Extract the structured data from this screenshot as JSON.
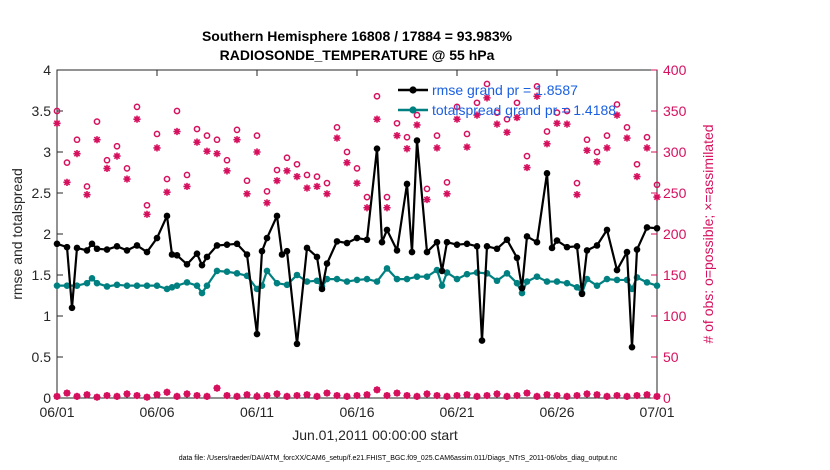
{
  "chart_data": {
    "type": "line",
    "title": "Southern Hemisphere 16808 / 17884 = 93.983%",
    "subtitle": "RADIOSONDE_TEMPERATURE @ 55 hPa",
    "xlabel": "Jun.01,2011 00:00:00 start",
    "ylabel": "rmse and totalspread",
    "ylabel_right": "# of obs: o=possible; ×=assimilated",
    "footnote": "data file: /Users/raeder/DAI/ATM_forcXX/CAM6_setup/f.e21.FHIST_BGC.f09_025.CAM6assim.011/Diags_NTrS_2011-06/obs_diag_output.nc",
    "xlim": [
      0,
      30
    ],
    "ylim": [
      0,
      4
    ],
    "ylim_right": [
      0,
      400
    ],
    "xticks": [
      0,
      5,
      10,
      15,
      20,
      25,
      30
    ],
    "xtick_labels": [
      "06/01",
      "06/06",
      "06/11",
      "06/16",
      "06/21",
      "06/26",
      "07/01"
    ],
    "yticks": [
      "0",
      "0.5",
      "1",
      "1.5",
      "2",
      "2.5",
      "3",
      "3.5",
      "4"
    ],
    "yticks_right": [
      "0",
      "50",
      "100",
      "150",
      "200",
      "250",
      "300",
      "350",
      "400"
    ],
    "legend": {
      "placement": "top-right",
      "entries": [
        "rmse grand pr = 1.8587",
        "totalspread grand pr = 1.4188"
      ]
    },
    "series": [
      {
        "name": "rmse grand pr = 1.8587",
        "color": "#000000",
        "marker": "circle",
        "axis": "left",
        "x": [
          0.0,
          0.5,
          0.75,
          1.0,
          1.5,
          1.75,
          2.0,
          2.5,
          3.0,
          3.5,
          4.0,
          4.5,
          5.0,
          5.5,
          5.75,
          6.0,
          6.5,
          7.0,
          7.25,
          7.5,
          8.0,
          8.5,
          9.0,
          9.5,
          10.0,
          10.25,
          10.5,
          11.0,
          11.25,
          11.5,
          12.0,
          12.5,
          13.0,
          13.25,
          13.5,
          14.0,
          14.5,
          15.0,
          15.5,
          16.0,
          16.25,
          16.5,
          17.0,
          17.5,
          17.75,
          18.0,
          18.5,
          19.0,
          19.25,
          19.5,
          20.0,
          20.5,
          21.0,
          21.25,
          21.5,
          22.0,
          22.5,
          23.0,
          23.25,
          23.5,
          24.0,
          24.5,
          24.75,
          25.0,
          25.5,
          26.0,
          26.25,
          26.5,
          27.0,
          27.5,
          28.0,
          28.5,
          28.75,
          29.0,
          29.5,
          30.0
        ],
        "values": [
          1.88,
          1.84,
          1.1,
          1.83,
          1.8,
          1.88,
          1.82,
          1.81,
          1.85,
          1.8,
          1.86,
          1.78,
          1.95,
          2.22,
          1.75,
          1.74,
          1.63,
          1.76,
          1.62,
          1.72,
          1.86,
          1.87,
          1.88,
          1.75,
          0.78,
          1.79,
          1.95,
          2.22,
          1.75,
          1.79,
          0.66,
          1.83,
          1.72,
          1.33,
          1.64,
          1.91,
          1.89,
          1.95,
          1.93,
          3.04,
          1.9,
          2.05,
          1.8,
          2.61,
          1.78,
          3.14,
          1.78,
          1.9,
          1.55,
          1.9,
          1.87,
          1.88,
          1.85,
          0.7,
          1.85,
          1.82,
          1.93,
          1.71,
          1.34,
          1.97,
          1.9,
          2.74,
          1.83,
          1.92,
          1.84,
          1.85,
          1.27,
          1.8,
          1.86,
          2.05,
          1.56,
          1.78,
          0.62,
          1.81,
          2.08,
          2.07
        ]
      },
      {
        "name": "totalspread grand pr = 1.4188",
        "color": "#008080",
        "marker": "circle",
        "axis": "left",
        "x": [
          0.0,
          0.5,
          1.0,
          1.5,
          1.75,
          2.0,
          2.5,
          3.0,
          3.5,
          4.0,
          4.5,
          5.0,
          5.5,
          5.75,
          6.0,
          6.5,
          7.0,
          7.25,
          7.5,
          8.0,
          8.5,
          9.0,
          9.5,
          10.0,
          10.25,
          10.5,
          11.0,
          11.5,
          12.0,
          12.5,
          13.0,
          13.25,
          13.5,
          14.0,
          14.5,
          15.0,
          15.5,
          16.0,
          16.5,
          17.0,
          17.5,
          18.0,
          18.5,
          19.0,
          19.25,
          19.5,
          20.0,
          20.5,
          21.0,
          21.5,
          22.0,
          22.5,
          23.0,
          23.25,
          23.5,
          24.0,
          24.5,
          25.0,
          25.5,
          26.0,
          26.25,
          26.5,
          27.0,
          27.5,
          28.0,
          28.5,
          28.75,
          29.0,
          29.5,
          30.0
        ],
        "values": [
          1.37,
          1.37,
          1.37,
          1.4,
          1.46,
          1.4,
          1.36,
          1.38,
          1.37,
          1.37,
          1.37,
          1.37,
          1.33,
          1.35,
          1.37,
          1.41,
          1.37,
          1.28,
          1.37,
          1.55,
          1.54,
          1.52,
          1.49,
          1.33,
          1.37,
          1.55,
          1.4,
          1.38,
          1.5,
          1.42,
          1.43,
          1.36,
          1.45,
          1.45,
          1.42,
          1.44,
          1.45,
          1.42,
          1.58,
          1.45,
          1.45,
          1.48,
          1.48,
          1.56,
          1.37,
          1.53,
          1.45,
          1.51,
          1.53,
          1.52,
          1.43,
          1.52,
          1.4,
          1.28,
          1.42,
          1.48,
          1.42,
          1.42,
          1.4,
          1.35,
          1.28,
          1.45,
          1.37,
          1.45,
          1.44,
          1.44,
          1.33,
          1.47,
          1.41,
          1.37
        ]
      },
      {
        "name": "obs possible",
        "color": "#d6105e",
        "marker": "o",
        "axis": "right",
        "x": [
          0.0,
          0.5,
          1.0,
          1.5,
          2.0,
          2.5,
          3.0,
          3.5,
          4.0,
          4.5,
          5.0,
          5.5,
          6.0,
          6.5,
          7.0,
          7.5,
          8.0,
          8.5,
          9.0,
          9.5,
          10.0,
          10.5,
          11.0,
          11.5,
          12.0,
          12.5,
          13.0,
          13.5,
          14.0,
          14.5,
          15.0,
          15.5,
          16.0,
          16.5,
          17.0,
          17.5,
          18.0,
          18.5,
          19.0,
          19.5,
          20.0,
          20.5,
          21.0,
          21.5,
          22.0,
          22.5,
          23.0,
          23.5,
          24.0,
          24.5,
          25.0,
          25.5,
          26.0,
          26.5,
          27.0,
          27.5,
          28.0,
          28.5,
          29.0,
          29.5,
          30.0
        ],
        "values": [
          350,
          287,
          315,
          258,
          337,
          290,
          307,
          280,
          355,
          235,
          322,
          267,
          350,
          272,
          328,
          320,
          315,
          290,
          327,
          265,
          320,
          252,
          278,
          293,
          285,
          272,
          270,
          262,
          330,
          300,
          280,
          245,
          368,
          245,
          335,
          318,
          345,
          255,
          320,
          263,
          355,
          322,
          360,
          383,
          348,
          340,
          360,
          295,
          380,
          325,
          348,
          350,
          262,
          315,
          300,
          320,
          358,
          330,
          285,
          318,
          260
        ],
        "values_assimilated": [
          335,
          263,
          298,
          248,
          315,
          280,
          295,
          267,
          340,
          224,
          305,
          251,
          325,
          258,
          312,
          301,
          298,
          277,
          315,
          249,
          300,
          238,
          265,
          277,
          270,
          256,
          258,
          249,
          317,
          287,
          262,
          232,
          340,
          232,
          320,
          304,
          333,
          242,
          305,
          249,
          340,
          306,
          345,
          366,
          334,
          324,
          342,
          281,
          368,
          310,
          335,
          334,
          248,
          302,
          288,
          305,
          345,
          317,
          270,
          305,
          245
        ]
      }
    ],
    "bottom_counts": {
      "name": "obs near zero",
      "color": "#d6105e",
      "x": [
        0.0,
        0.5,
        1.0,
        1.5,
        2.0,
        2.5,
        3.0,
        3.5,
        4.0,
        4.5,
        5.0,
        5.5,
        6.0,
        6.5,
        7.0,
        7.5,
        8.0,
        8.5,
        9.0,
        9.5,
        10.0,
        10.5,
        11.0,
        11.5,
        12.0,
        12.5,
        13.0,
        13.5,
        14.0,
        14.5,
        15.0,
        15.5,
        16.0,
        16.5,
        17.0,
        17.5,
        18.0,
        18.5,
        19.0,
        19.5,
        20.0,
        20.5,
        21.0,
        21.5,
        22.0,
        22.5,
        23.0,
        23.5,
        24.0,
        24.5,
        25.0,
        25.5,
        26.0,
        26.5,
        27.0,
        27.5,
        28.0,
        28.5,
        29.0,
        29.5,
        30.0
      ],
      "values": [
        2,
        6,
        2,
        4,
        1,
        3,
        2,
        5,
        3,
        1,
        4,
        7,
        2,
        5,
        3,
        2,
        12,
        3,
        2,
        4,
        2,
        3,
        5,
        2,
        3,
        4,
        2,
        6,
        3,
        2,
        3,
        4,
        10,
        3,
        6,
        3,
        2,
        5,
        3,
        2,
        3,
        4,
        2,
        3,
        5,
        2,
        3,
        6,
        2,
        4,
        3,
        2,
        3,
        5,
        4,
        2,
        3,
        2,
        3,
        4,
        2
      ]
    }
  }
}
